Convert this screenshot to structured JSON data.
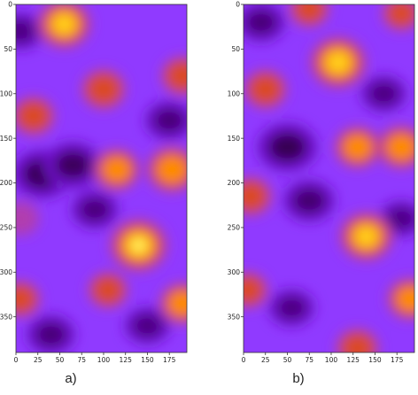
{
  "colormap": {
    "name": "gnuplot2-like",
    "stops": [
      "#2a0030",
      "#5a00a0",
      "#8a2bff",
      "#9a50ff",
      "#c0307a",
      "#e05010",
      "#ff8c00",
      "#ffd020",
      "#ffff70"
    ]
  },
  "chart_data": [
    {
      "type": "heatmap",
      "panel_label": "a)",
      "x_ticks": [
        "0",
        "25",
        "50",
        "75",
        "100",
        "125",
        "150",
        "175"
      ],
      "y_ticks": [
        "0",
        "50",
        "100",
        "150",
        "200",
        "250",
        "300",
        "350"
      ],
      "xlim": [
        0,
        195
      ],
      "ylim": [
        390,
        0
      ],
      "y_inverted": true,
      "grid": false,
      "blobs": [
        {
          "x": 55,
          "y": 22,
          "intensity": 0.85
        },
        {
          "x": 100,
          "y": 95,
          "intensity": 0.55
        },
        {
          "x": 20,
          "y": 125,
          "intensity": 0.5
        },
        {
          "x": 115,
          "y": 185,
          "intensity": 0.6
        },
        {
          "x": 178,
          "y": 185,
          "intensity": 0.75
        },
        {
          "x": 140,
          "y": 270,
          "intensity": 1.0
        },
        {
          "x": 190,
          "y": 80,
          "intensity": 0.5
        },
        {
          "x": 105,
          "y": 320,
          "intensity": 0.4
        },
        {
          "x": 190,
          "y": 335,
          "intensity": 0.6
        },
        {
          "x": 5,
          "y": 330,
          "intensity": 0.4
        },
        {
          "x": 5,
          "y": 240,
          "intensity": 0.3
        },
        {
          "x": 30,
          "y": 190,
          "intensity": -0.9
        },
        {
          "x": 65,
          "y": 180,
          "intensity": -0.8
        },
        {
          "x": 175,
          "y": 130,
          "intensity": -0.5
        },
        {
          "x": 40,
          "y": 370,
          "intensity": -0.5
        },
        {
          "x": 90,
          "y": 230,
          "intensity": -0.45
        },
        {
          "x": 5,
          "y": 30,
          "intensity": -0.4
        },
        {
          "x": 150,
          "y": 360,
          "intensity": -0.4
        }
      ]
    },
    {
      "type": "heatmap",
      "panel_label": "b)",
      "x_ticks": [
        "0",
        "25",
        "50",
        "75",
        "100",
        "125",
        "150",
        "175"
      ],
      "y_ticks": [
        "0",
        "50",
        "100",
        "150",
        "200",
        "250",
        "300",
        "350"
      ],
      "xlim": [
        0,
        195
      ],
      "ylim": [
        390,
        0
      ],
      "y_inverted": true,
      "grid": false,
      "blobs": [
        {
          "x": 108,
          "y": 65,
          "intensity": 0.95
        },
        {
          "x": 25,
          "y": 95,
          "intensity": 0.5
        },
        {
          "x": 130,
          "y": 160,
          "intensity": 0.6
        },
        {
          "x": 180,
          "y": 160,
          "intensity": 0.65
        },
        {
          "x": 140,
          "y": 260,
          "intensity": 0.85
        },
        {
          "x": 8,
          "y": 215,
          "intensity": 0.5
        },
        {
          "x": 190,
          "y": 330,
          "intensity": 0.6
        },
        {
          "x": 5,
          "y": 320,
          "intensity": 0.4
        },
        {
          "x": 130,
          "y": 385,
          "intensity": 0.5
        },
        {
          "x": 75,
          "y": 5,
          "intensity": 0.4
        },
        {
          "x": 180,
          "y": 10,
          "intensity": 0.35
        },
        {
          "x": 50,
          "y": 160,
          "intensity": -0.9
        },
        {
          "x": 75,
          "y": 220,
          "intensity": -0.6
        },
        {
          "x": 20,
          "y": 20,
          "intensity": -0.5
        },
        {
          "x": 160,
          "y": 100,
          "intensity": -0.4
        },
        {
          "x": 55,
          "y": 340,
          "intensity": -0.4
        },
        {
          "x": 180,
          "y": 240,
          "intensity": -0.35
        }
      ]
    }
  ]
}
